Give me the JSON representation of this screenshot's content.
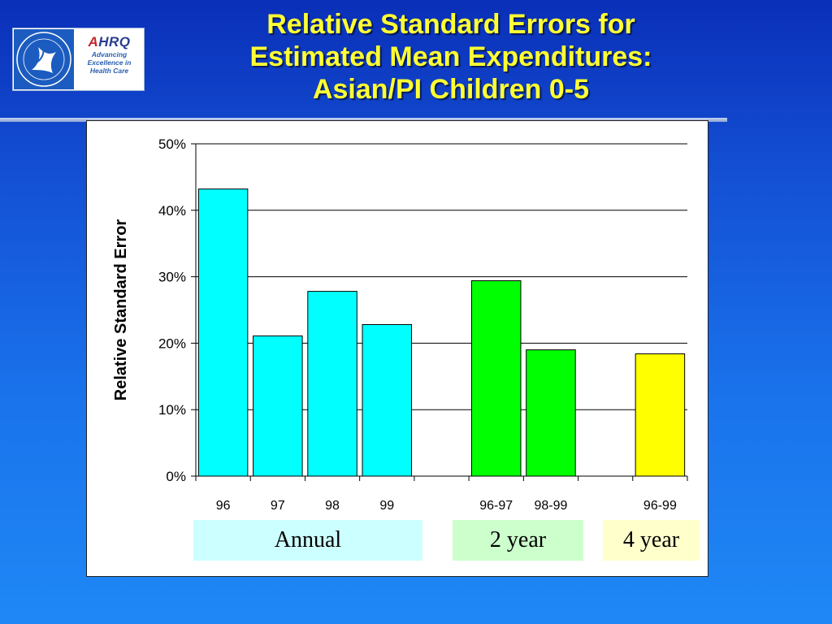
{
  "header": {
    "title_lines": [
      "Relative Standard Errors for",
      "Estimated Mean Expenditures:",
      "Asian/PI Children 0-5"
    ]
  },
  "logo": {
    "brand": "AHRQ",
    "tagline_lines": [
      "Advancing",
      "Excellence in",
      "Health Care"
    ]
  },
  "chart_data": {
    "type": "bar",
    "title": "Relative Standard Errors for Estimated Mean Expenditures: Asian/PI Children 0-5",
    "ylabel": "Relative Standard Error",
    "xlabel": "",
    "ylim": [
      0,
      50
    ],
    "yticks": [
      "0%",
      "10%",
      "20%",
      "30%",
      "40%",
      "50%"
    ],
    "grid": true,
    "categories": [
      "96",
      "97",
      "98",
      "99",
      "",
      "96-97",
      "98-99",
      "",
      "96-99"
    ],
    "values": [
      43.2,
      21.1,
      27.8,
      22.8,
      null,
      29.4,
      19.0,
      null,
      18.4
    ],
    "bar_colors": [
      "#00ffff",
      "#00ffff",
      "#00ffff",
      "#00ffff",
      null,
      "#00ff00",
      "#00ff00",
      null,
      "#ffff00"
    ],
    "groups": [
      {
        "label": "Annual",
        "color": "#ccffff"
      },
      {
        "label": "2 year",
        "color": "#ccffcc"
      },
      {
        "label": "4 year",
        "color": "#ffffcc"
      }
    ]
  }
}
